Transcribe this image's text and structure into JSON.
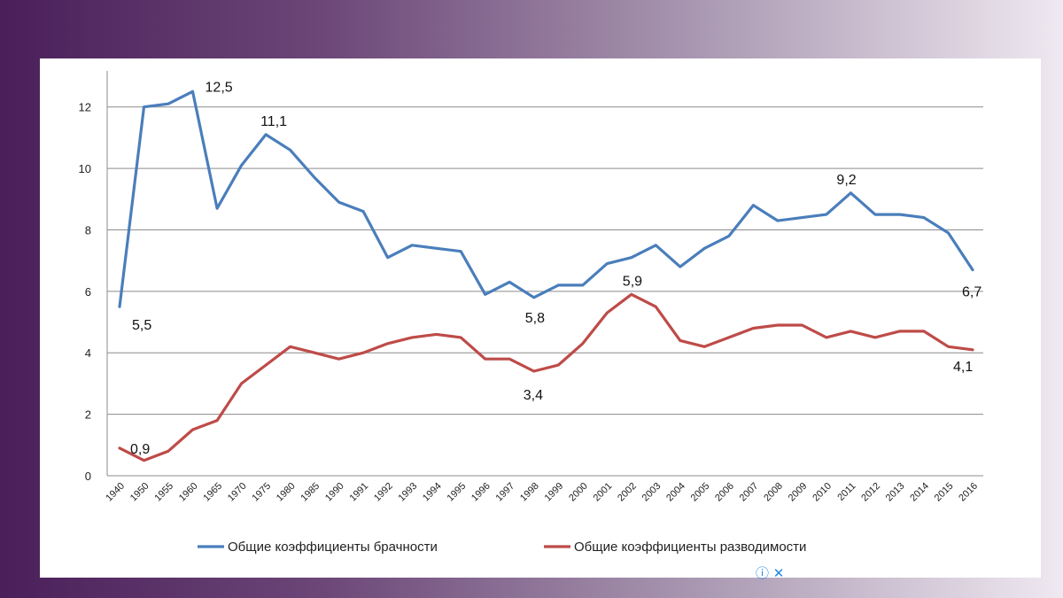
{
  "chart_data": {
    "type": "line",
    "categories": [
      "1940",
      "1950",
      "1955",
      "1960",
      "1965",
      "1970",
      "1975",
      "1980",
      "1985",
      "1990",
      "1991",
      "1992",
      "1993",
      "1994",
      "1995",
      "1996",
      "1997",
      "1998",
      "1999",
      "2000",
      "2001",
      "2002",
      "2003",
      "2004",
      "2005",
      "2006",
      "2007",
      "2008",
      "2009",
      "2010",
      "2011",
      "2012",
      "2013",
      "2014",
      "2015",
      "2016"
    ],
    "series": [
      {
        "name": "Общие коэффициенты брачности",
        "color": "#4a7ebb",
        "values": [
          5.5,
          12.0,
          12.1,
          12.5,
          8.7,
          10.1,
          11.1,
          10.6,
          9.7,
          8.9,
          8.6,
          7.1,
          7.5,
          7.4,
          7.3,
          5.9,
          6.3,
          5.8,
          6.2,
          6.2,
          6.9,
          7.1,
          7.5,
          6.8,
          7.4,
          7.8,
          8.8,
          8.3,
          8.4,
          8.5,
          9.2,
          8.5,
          8.5,
          8.4,
          7.9,
          6.7
        ]
      },
      {
        "name": "Общие коэффициенты разводимости",
        "color": "#be4b48",
        "values": [
          0.9,
          0.5,
          0.8,
          1.5,
          1.8,
          3.0,
          3.6,
          4.2,
          4.0,
          3.8,
          4.0,
          4.3,
          4.5,
          4.6,
          4.5,
          3.8,
          3.8,
          3.4,
          3.6,
          4.3,
          5.3,
          5.9,
          5.5,
          4.4,
          4.2,
          4.5,
          4.8,
          4.9,
          4.9,
          4.5,
          4.7,
          4.5,
          4.7,
          4.7,
          4.2,
          4.1
        ]
      }
    ],
    "yticks": [
      "0",
      "2",
      "4",
      "6",
      "8",
      "10",
      "12"
    ],
    "ylim": [
      0,
      13
    ],
    "grid": true,
    "legend_position": "bottom",
    "annotations": [
      {
        "series": 0,
        "index": 0,
        "text": "5,5"
      },
      {
        "series": 0,
        "index": 3,
        "text": "12,5"
      },
      {
        "series": 0,
        "index": 6,
        "text": "11,1"
      },
      {
        "series": 0,
        "index": 17,
        "text": "5,8"
      },
      {
        "series": 0,
        "index": 30,
        "text": "9,2"
      },
      {
        "series": 0,
        "index": 35,
        "text": "6,7"
      },
      {
        "series": 1,
        "index": 0,
        "text": "0,9"
      },
      {
        "series": 1,
        "index": 17,
        "text": "3,4"
      },
      {
        "series": 1,
        "index": 21,
        "text": "5,9"
      },
      {
        "series": 1,
        "index": 35,
        "text": "4,1"
      }
    ]
  },
  "footer_icons": {
    "info": "info-icon",
    "close": "close-icon",
    "info_glyph": "ⓘ",
    "close_glyph": "✕"
  }
}
